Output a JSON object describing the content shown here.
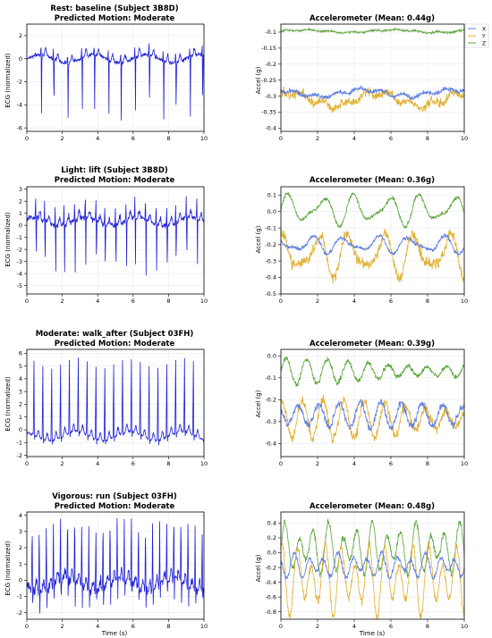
{
  "figure": {
    "xlabel": "Time (s)"
  },
  "ecg_ylabel": "ECG (normalized)",
  "acc_ylabel": "Accel (g)",
  "legend": [
    "X",
    "Y",
    "Z"
  ],
  "colors": {
    "ecg": "#1f1fd6",
    "x": "#5b7be0",
    "y": "#e0b030",
    "z": "#5aa43a",
    "grid": "#e6e6e6"
  },
  "rows": [
    {
      "title_line1": "Rest: baseline (Subject 3B8D)",
      "title_line2": "Predicted Motion: Moderate",
      "acc_title": "Accelerometer (Mean: 0.44g)"
    },
    {
      "title_line1": "Light: lift (Subject 3B8D)",
      "title_line2": "Predicted Motion: Moderate",
      "acc_title": "Accelerometer (Mean: 0.36g)"
    },
    {
      "title_line1": "Moderate: walk_after (Subject 03FH)",
      "title_line2": "Predicted Motion: Moderate",
      "acc_title": "Accelerometer (Mean: 0.39g)"
    },
    {
      "title_line1": "Vigorous: run (Subject 03FH)",
      "title_line2": "Predicted Motion: Moderate",
      "acc_title": "Accelerometer (Mean: 0.48g)"
    }
  ],
  "chart_data": [
    {
      "type": "line",
      "panel": "ecg",
      "row": 0,
      "xlim": [
        0,
        10
      ],
      "ylim": [
        -6.3,
        3.0
      ],
      "xticks": [
        0,
        2,
        4,
        6,
        8,
        10
      ],
      "yticks": [
        2,
        0,
        -2,
        -4,
        -6
      ],
      "baseline": 0,
      "beat_times": [
        0.8,
        1.5,
        2.3,
        3.1,
        3.8,
        4.6,
        5.3,
        6.1,
        6.9,
        7.7,
        8.4,
        9.2,
        9.9
      ],
      "r_peak": 0.9,
      "s_trough": -5.3,
      "noise": 0.25,
      "series": [
        {
          "values_sampled": "ECG trace"
        }
      ]
    },
    {
      "type": "line",
      "panel": "acc",
      "row": 0,
      "xlim": [
        0,
        10
      ],
      "ylim": [
        -0.41,
        -0.075
      ],
      "xticks": [
        0,
        2,
        4,
        6,
        8,
        10
      ],
      "yticks": [
        -0.1,
        -0.15,
        -0.2,
        -0.25,
        -0.3,
        -0.35,
        -0.4
      ],
      "series": [
        {
          "name": "X",
          "mean": -0.29,
          "amp": 0.01,
          "noise": 0.006
        },
        {
          "name": "Y",
          "mean": -0.31,
          "amp": 0.02,
          "noise": 0.012
        },
        {
          "name": "Z",
          "mean": -0.097,
          "amp": 0.004,
          "noise": 0.003
        }
      ]
    },
    {
      "type": "line",
      "panel": "ecg",
      "row": 1,
      "xlim": [
        0,
        10
      ],
      "ylim": [
        -5.7,
        3.2
      ],
      "xticks": [
        0,
        2,
        4,
        6,
        8,
        10
      ],
      "yticks": [
        3,
        2,
        1,
        0,
        -1,
        -2,
        -3,
        -4,
        -5
      ],
      "baseline": 0.3,
      "beat_times": [
        0.5,
        1.0,
        1.6,
        2.1,
        2.7,
        3.3,
        3.9,
        4.4,
        5.0,
        5.6,
        6.1,
        6.7,
        7.3,
        7.9,
        8.4,
        9.0,
        9.6
      ],
      "r_peak": 1.6,
      "s_trough": -4.2,
      "noise": 0.35,
      "series": [
        {
          "values_sampled": "ECG trace"
        }
      ]
    },
    {
      "type": "line",
      "panel": "acc",
      "row": 1,
      "xlim": [
        0,
        10
      ],
      "ylim": [
        -0.5,
        0.15
      ],
      "xticks": [
        0,
        2,
        4,
        6,
        8,
        10
      ],
      "yticks": [
        0.1,
        0.0,
        -0.1,
        -0.2,
        -0.3,
        -0.4,
        -0.5
      ],
      "series": [
        {
          "name": "X",
          "mean": -0.2,
          "amp": 0.04,
          "noise": 0.01
        },
        {
          "name": "Y",
          "mean": -0.26,
          "amp": 0.1,
          "noise": 0.03
        },
        {
          "name": "Z",
          "mean": 0.01,
          "amp": 0.07,
          "noise": 0.01
        }
      ]
    },
    {
      "type": "line",
      "panel": "ecg",
      "row": 2,
      "xlim": [
        0,
        10
      ],
      "ylim": [
        -2.1,
        6.3
      ],
      "xticks": [
        0,
        2,
        4,
        6,
        8,
        10
      ],
      "yticks": [
        6,
        5,
        4,
        3,
        2,
        1,
        0,
        -1,
        -2
      ],
      "baseline": -0.5,
      "beat_times": [
        0.4,
        0.9,
        1.4,
        1.9,
        2.4,
        2.9,
        3.4,
        3.9,
        4.4,
        4.9,
        5.4,
        5.9,
        6.4,
        6.9,
        7.4,
        7.9,
        8.4,
        8.9,
        9.4
      ],
      "r_peak": 6.0,
      "s_trough": -1.5,
      "noise": 0.15,
      "series": [
        {
          "values_sampled": "ECG trace"
        }
      ]
    },
    {
      "type": "line",
      "panel": "acc",
      "row": 2,
      "xlim": [
        0,
        10
      ],
      "ylim": [
        -0.46,
        0.03
      ],
      "xticks": [
        0,
        2,
        4,
        6,
        8,
        10
      ],
      "yticks": [
        0.0,
        -0.1,
        -0.2,
        -0.3,
        -0.4
      ],
      "series": [
        {
          "name": "X",
          "mean": -0.27,
          "amp": 0.04,
          "noise": 0.015
        },
        {
          "name": "Y",
          "mean": -0.29,
          "amp": 0.06,
          "noise": 0.02
        },
        {
          "name": "Z",
          "mean": -0.07,
          "amp": 0.04,
          "noise": 0.01
        }
      ]
    },
    {
      "type": "line",
      "panel": "ecg",
      "row": 3,
      "xlim": [
        0,
        10
      ],
      "ylim": [
        -2.4,
        4.2
      ],
      "xticks": [
        0,
        2,
        4,
        6,
        8,
        10
      ],
      "yticks": [
        4,
        3,
        2,
        1,
        0,
        -1,
        -2
      ],
      "baseline": -0.3,
      "beat_times": [
        0.3,
        0.7,
        1.1,
        1.5,
        1.9,
        2.3,
        2.7,
        3.1,
        3.5,
        3.9,
        4.3,
        4.7,
        5.1,
        5.5,
        5.9,
        6.3,
        6.7,
        7.1,
        7.5,
        7.9,
        8.3,
        8.7,
        9.1,
        9.5,
        9.9
      ],
      "r_peak": 3.9,
      "s_trough": -1.8,
      "noise": 0.45,
      "series": [
        {
          "values_sampled": "ECG trace"
        }
      ]
    },
    {
      "type": "line",
      "panel": "acc",
      "row": 3,
      "xlim": [
        0,
        10
      ],
      "ylim": [
        -0.9,
        0.55
      ],
      "xticks": [
        0,
        2,
        4,
        6,
        8,
        10
      ],
      "yticks": [
        0.4,
        0.2,
        0.0,
        -0.2,
        -0.4,
        -0.6,
        -0.8
      ],
      "series": [
        {
          "name": "X",
          "mean": -0.18,
          "amp": 0.12,
          "noise": 0.03
        },
        {
          "name": "Y",
          "mean": -0.35,
          "amp": 0.35,
          "noise": 0.05
        },
        {
          "name": "Z",
          "mean": 0.05,
          "amp": 0.25,
          "noise": 0.04
        }
      ]
    }
  ]
}
